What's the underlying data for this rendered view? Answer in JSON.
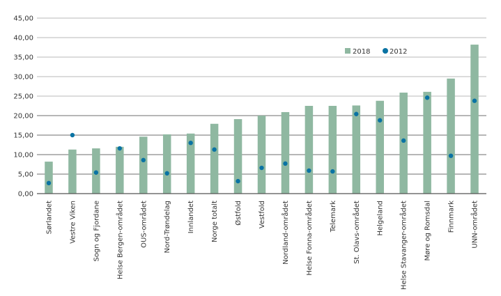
{
  "chart_data": {
    "type": "bar",
    "title": "",
    "xlabel": "",
    "ylabel": "",
    "ylim": [
      0,
      45
    ],
    "yticks": [
      "0,00",
      "5,00",
      "10,00",
      "15,00",
      "20,00",
      "25,00",
      "30,00",
      "35,00",
      "40,00",
      "45,00"
    ],
    "ytick_values": [
      0,
      5,
      10,
      15,
      20,
      25,
      30,
      35,
      40,
      45
    ],
    "grid": true,
    "legend_position": "top-right",
    "categories": [
      "Sørlandet",
      "Vestre Viken",
      "Sogn og Fjordane",
      "Helse Bergen-området",
      "OUS-området",
      "Nord-Trøndelag",
      "Innlandet",
      "Norge totalt",
      "Østfold",
      "Vestfold",
      "Nordland-området",
      "Helse Fonna-området",
      "Telemark",
      "St. Olavs-området",
      "Helgeland",
      "Helse Stavanger-området",
      "Møre og Romsdal",
      "Finnmark",
      "UNN-området"
    ],
    "series": [
      {
        "name": "2018",
        "type": "bar",
        "color": "#8fb8a1",
        "values": [
          8.2,
          11.3,
          11.6,
          12.0,
          14.6,
          15.2,
          15.4,
          17.9,
          19.1,
          20.0,
          20.9,
          22.5,
          22.5,
          22.6,
          23.8,
          25.9,
          26.1,
          29.5,
          38.2
        ]
      },
      {
        "name": "2012",
        "type": "scatter",
        "color": "#0a73a3",
        "values": [
          2.7,
          15.0,
          5.4,
          11.6,
          8.6,
          5.2,
          13.0,
          11.3,
          3.2,
          6.6,
          7.7,
          5.9,
          5.7,
          20.4,
          18.8,
          13.6,
          24.6,
          9.7,
          23.8
        ]
      }
    ]
  },
  "legend": {
    "items": [
      {
        "label": "2018",
        "color": "#8fb8a1",
        "icon": "square-icon"
      },
      {
        "label": "2012",
        "color": "#0a73a3",
        "icon": "circle-icon"
      }
    ]
  },
  "colors": {
    "grid_light": "#c8c8c8",
    "grid_dark": "#8a8a8a",
    "axis": "#555555"
  }
}
